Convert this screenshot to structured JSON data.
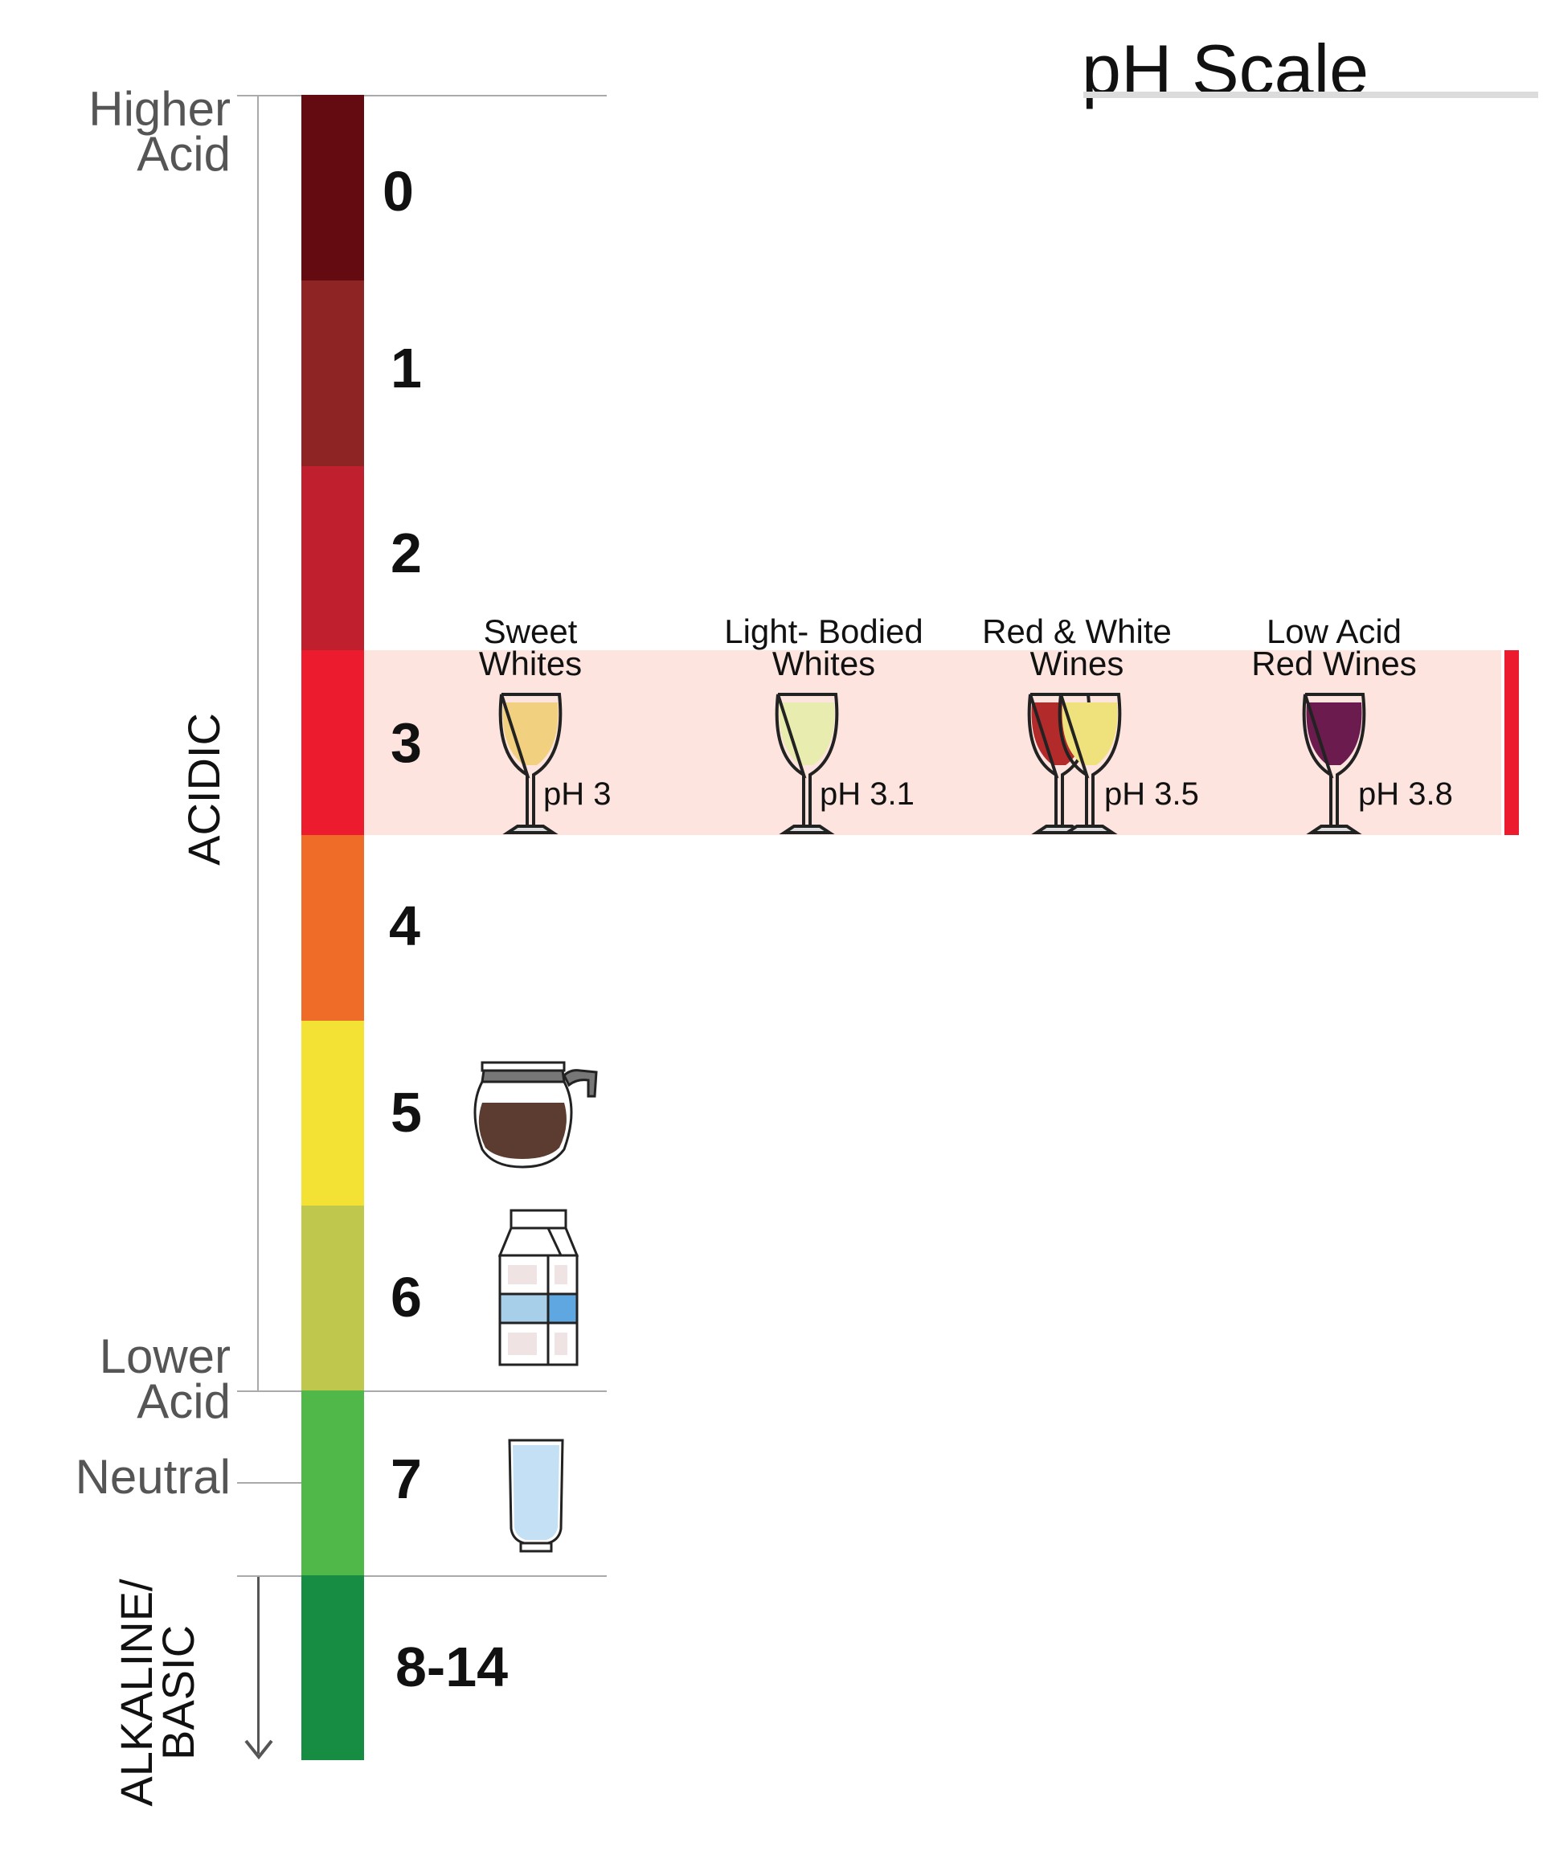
{
  "title": "pH Scale",
  "labels": {
    "higher_acid": [
      "Higher",
      "Acid"
    ],
    "lower_acid": [
      "Lower",
      "Acid"
    ],
    "neutral": "Neutral",
    "acidic": "ACIDIC",
    "alkaline_basic": [
      "ALKALINE/",
      "BASIC"
    ]
  },
  "scale": [
    {
      "label": "0",
      "color": "#630B10"
    },
    {
      "label": "1",
      "color": "#8E2423"
    },
    {
      "label": "2",
      "color": "#C0202E"
    },
    {
      "label": "3",
      "color": "#EC1C2E"
    },
    {
      "label": "4",
      "color": "#EE6C27"
    },
    {
      "label": "5",
      "color": "#F3E234"
    },
    {
      "label": "6",
      "color": "#BFC84C"
    },
    {
      "label": "7",
      "color": "#50B849"
    },
    {
      "label": "8-14",
      "color": "#178D44"
    }
  ],
  "highlight": {
    "color": "#FDE4DE",
    "edge_color": "#EC1C2E"
  },
  "wines": [
    {
      "title": [
        "Sweet",
        "Whites"
      ],
      "ph": "pH 3",
      "fill_color": "#F1D17F"
    },
    {
      "title": [
        "Light- Bodied",
        "Whites"
      ],
      "ph": "pH 3.1",
      "fill_color": "#E8EDAF"
    },
    {
      "title": [
        "Red & White",
        "Wines"
      ],
      "ph": "pH 3.5",
      "fill_color": "#B22A2A",
      "fill_color_2": "#EFE17B"
    },
    {
      "title": [
        "Low Acid",
        "Red Wines"
      ],
      "ph": "pH 3.8",
      "fill_color": "#6B1B4E"
    }
  ],
  "items": [
    {
      "name": "coffee-pot-icon",
      "level": "5"
    },
    {
      "name": "milk-carton-icon",
      "level": "6"
    },
    {
      "name": "water-glass-icon",
      "level": "7"
    }
  ]
}
